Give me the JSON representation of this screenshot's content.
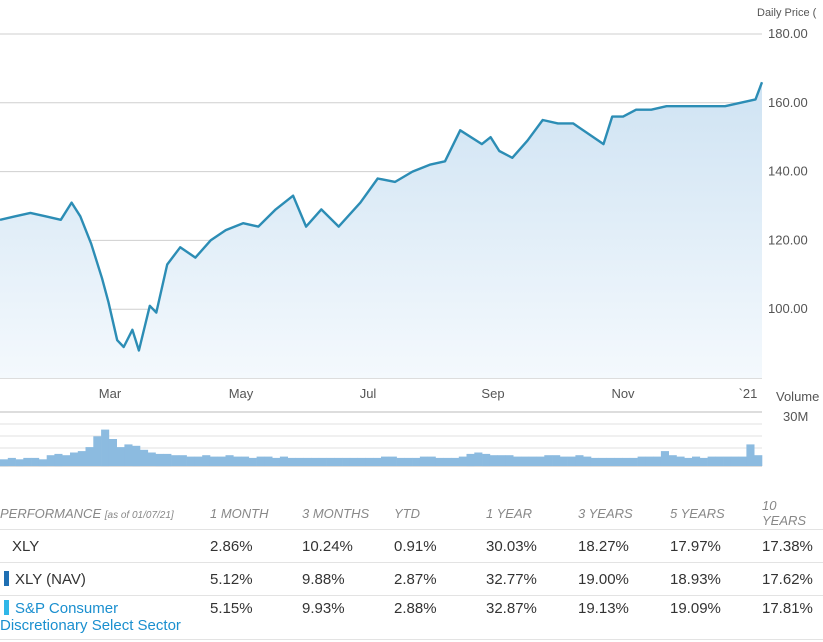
{
  "chart_data": [
    {
      "type": "area",
      "ylabel": "Daily Price (",
      "y_ticks": [
        "180.00",
        "160.00",
        "140.00",
        "120.00",
        "100.00"
      ],
      "ylim": [
        80,
        180
      ],
      "x_ticks": [
        "Mar",
        "May",
        "Jul",
        "Sep",
        "Nov",
        "`21"
      ],
      "x": [
        "2020-01-22",
        "2020-01-29",
        "2020-02-05",
        "2020-02-12",
        "2020-02-19",
        "2020-02-24",
        "2020-02-28",
        "2020-03-04",
        "2020-03-09",
        "2020-03-12",
        "2020-03-16",
        "2020-03-19",
        "2020-03-23",
        "2020-03-26",
        "2020-03-31",
        "2020-04-03",
        "2020-04-08",
        "2020-04-14",
        "2020-04-21",
        "2020-04-28",
        "2020-05-05",
        "2020-05-13",
        "2020-05-20",
        "2020-05-28",
        "2020-06-05",
        "2020-06-11",
        "2020-06-18",
        "2020-06-26",
        "2020-07-06",
        "2020-07-14",
        "2020-07-22",
        "2020-07-30",
        "2020-08-07",
        "2020-08-14",
        "2020-08-21",
        "2020-08-31",
        "2020-09-04",
        "2020-09-08",
        "2020-09-14",
        "2020-09-21",
        "2020-09-28",
        "2020-10-05",
        "2020-10-12",
        "2020-10-19",
        "2020-10-26",
        "2020-10-30",
        "2020-11-04",
        "2020-11-10",
        "2020-11-17",
        "2020-11-24",
        "2020-12-01",
        "2020-12-08",
        "2020-12-15",
        "2020-12-21",
        "2020-12-28",
        "2021-01-04",
        "2021-01-07"
      ],
      "series": [
        {
          "values": [
            126,
            127,
            128,
            127,
            126,
            131,
            127,
            119,
            109,
            102,
            91,
            89,
            94,
            88,
            101,
            99,
            113,
            118,
            115,
            120,
            123,
            125,
            124,
            129,
            133,
            124,
            129,
            124,
            131,
            138,
            137,
            140,
            142,
            143,
            152,
            148,
            150,
            146,
            144,
            149,
            155,
            154,
            154,
            151,
            148,
            156,
            156,
            158,
            158,
            159,
            159,
            159,
            159,
            159,
            160,
            161,
            166
          ],
          "color": "#2c8db5"
        }
      ],
      "grid": true
    },
    {
      "type": "bar",
      "ylabel": "Volume",
      "y_ticks": [
        "30M"
      ],
      "ylim": [
        0,
        40
      ],
      "series": [
        {
          "values": [
            5,
            6,
            5,
            6,
            6,
            5,
            8,
            9,
            8,
            10,
            11,
            14,
            22,
            27,
            20,
            14,
            16,
            15,
            12,
            10,
            9,
            9,
            8,
            8,
            7,
            7,
            8,
            7,
            7,
            8,
            7,
            7,
            6,
            7,
            7,
            6,
            7,
            6,
            6,
            6,
            6,
            6,
            6,
            6,
            6,
            6,
            6,
            6,
            6,
            7,
            7,
            6,
            6,
            6,
            7,
            7,
            6,
            6,
            6,
            7,
            9,
            10,
            9,
            8,
            8,
            8,
            7,
            7,
            7,
            7,
            8,
            8,
            7,
            7,
            8,
            7,
            6,
            6,
            6,
            6,
            6,
            6,
            7,
            7,
            7,
            11,
            8,
            7,
            6,
            7,
            6,
            7,
            7,
            7,
            7,
            7,
            16,
            8
          ],
          "color": "#8cbbe0"
        }
      ]
    }
  ],
  "performance": {
    "header": {
      "label": "PERFORMANCE",
      "asof": "[as of 01/07/21]",
      "periods": [
        "1 MONTH",
        "3 MONTHS",
        "YTD",
        "1 YEAR",
        "3 YEARS",
        "5 YEARS",
        "10 YEARS"
      ]
    },
    "rows": [
      {
        "name": "XLY",
        "values": [
          "2.86%",
          "10.24%",
          "0.91%",
          "30.03%",
          "18.27%",
          "17.97%",
          "17.38%"
        ]
      },
      {
        "name": "XLY (NAV)",
        "color": "#1f6fb3",
        "values": [
          "5.12%",
          "9.88%",
          "2.87%",
          "32.77%",
          "19.00%",
          "18.93%",
          "17.62%"
        ]
      },
      {
        "name_line1": "S&P Consumer",
        "name_line2": "Discretionary Select Sector",
        "color": "#2fb7e8",
        "values": [
          "5.15%",
          "9.93%",
          "2.88%",
          "32.87%",
          "19.13%",
          "19.09%",
          "17.81%"
        ]
      }
    ]
  }
}
